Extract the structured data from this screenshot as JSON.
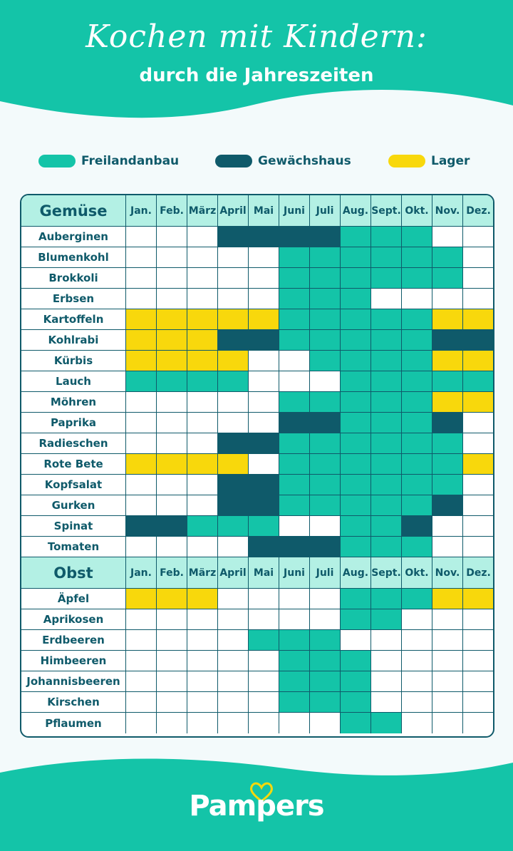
{
  "header": {
    "title": "Kochen mit Kindern:",
    "subtitle": "durch die Jahreszeiten"
  },
  "colors": {
    "teal": "#14c4a8",
    "dark": "#0f5a6a",
    "yellow": "#f8d80c",
    "header_bg": "#b3f0e4"
  },
  "legend": [
    {
      "label": "Freilandanbau",
      "color": "#14c4a8"
    },
    {
      "label": "Gewächshaus",
      "color": "#0f5a6a"
    },
    {
      "label": "Lager",
      "color": "#f8d80c"
    }
  ],
  "months": [
    "Jan.",
    "Feb.",
    "März",
    "April",
    "Mai",
    "Juni",
    "Juli",
    "Aug.",
    "Sept.",
    "Okt.",
    "Nov.",
    "Dez."
  ],
  "sections": [
    {
      "title": "Gemüse",
      "rows": [
        {
          "name": "Auberginen",
          "m": "---GGGGFFF--"
        },
        {
          "name": "Blumenkohl",
          "m": "-----FFFFFF-"
        },
        {
          "name": "Brokkoli",
          "m": "-----FFFFFF-"
        },
        {
          "name": "Erbsen",
          "m": "-----FFF----"
        },
        {
          "name": "Kartoffeln",
          "m": "LLLLLFFFFFLL"
        },
        {
          "name": "Kohlrabi",
          "m": "LLLGGFFFFFGG"
        },
        {
          "name": "Kürbis",
          "m": "LLLL--FFFFLL"
        },
        {
          "name": "Lauch",
          "m": "FFFF---FFFFF"
        },
        {
          "name": "Möhren",
          "m": "-----FFFFFLL"
        },
        {
          "name": "Paprika",
          "m": "-----GGFFFG-"
        },
        {
          "name": "Radieschen",
          "m": "---GGFFFFFF-"
        },
        {
          "name": "Rote Bete",
          "m": "LLLL-FFFFFFL"
        },
        {
          "name": "Kopfsalat",
          "m": "---GGFFFFFF-"
        },
        {
          "name": "Gurken",
          "m": "---GGFFFFFG-"
        },
        {
          "name": "Spinat",
          "m": "GGFFF--FFG--"
        },
        {
          "name": "Tomaten",
          "m": "----GGGFFF--"
        }
      ]
    },
    {
      "title": "Obst",
      "rows": [
        {
          "name": "Äpfel",
          "m": "LLL----FFFLL"
        },
        {
          "name": "Aprikosen",
          "m": "-------FF---"
        },
        {
          "name": "Erdbeeren",
          "m": "----FFF-----"
        },
        {
          "name": "Himbeeren",
          "m": "-----FFF----"
        },
        {
          "name": "Johannisbeeren",
          "m": "-----FFF----"
        },
        {
          "name": "Kirschen",
          "m": "-----FFF----"
        },
        {
          "name": "Pflaumen",
          "m": "-------FF---"
        }
      ]
    }
  ],
  "footer": {
    "brand": "Pampers",
    "logo_icon": "heart-icon"
  }
}
